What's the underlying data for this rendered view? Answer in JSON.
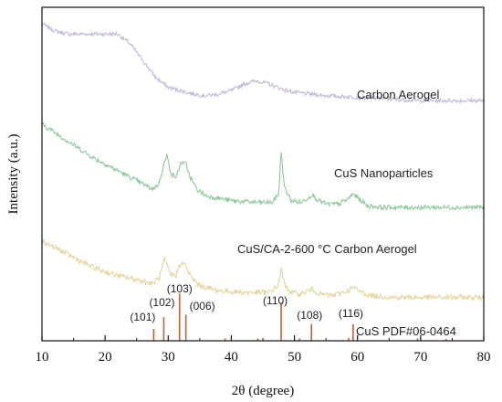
{
  "chart_data": {
    "type": "line",
    "xlabel": "2θ (degree)",
    "ylabel": "Intensity (a.u.)",
    "xlim": [
      10,
      80
    ],
    "x_ticks": [
      10,
      20,
      30,
      40,
      50,
      60,
      70,
      80
    ],
    "y_ticks_shown": false,
    "grid": false,
    "series": [
      {
        "name": "Carbon Aerogel",
        "color": "#c5b8db",
        "x": [
          10,
          12,
          14,
          16,
          18,
          20,
          22,
          24,
          26,
          28,
          30,
          32,
          34,
          36,
          38,
          40,
          42,
          44,
          46,
          48,
          50,
          55,
          60,
          65,
          70,
          75,
          80
        ],
        "y": [
          0.95,
          0.93,
          0.92,
          0.92,
          0.92,
          0.92,
          0.92,
          0.89,
          0.84,
          0.79,
          0.76,
          0.75,
          0.74,
          0.735,
          0.74,
          0.75,
          0.77,
          0.78,
          0.77,
          0.755,
          0.745,
          0.735,
          0.73,
          0.725,
          0.72,
          0.72,
          0.72
        ]
      },
      {
        "name": "CuS Nanoparticles",
        "color": "#8ec89a",
        "x": [
          10,
          14,
          18,
          22,
          26,
          27.5,
          28.5,
          29.3,
          29.8,
          30.5,
          31.3,
          32,
          32.8,
          33.5,
          34.5,
          36,
          40,
          44,
          46.5,
          47.5,
          47.9,
          48.4,
          49.5,
          51,
          52.3,
          52.8,
          53.5,
          55,
          57,
          58.5,
          59.3,
          60,
          61.5,
          64,
          70,
          80
        ],
        "y": [
          0.65,
          0.6,
          0.55,
          0.51,
          0.47,
          0.455,
          0.47,
          0.53,
          0.555,
          0.5,
          0.49,
          0.535,
          0.53,
          0.49,
          0.455,
          0.435,
          0.42,
          0.415,
          0.415,
          0.44,
          0.57,
          0.46,
          0.42,
          0.415,
          0.43,
          0.44,
          0.425,
          0.41,
          0.41,
          0.425,
          0.44,
          0.43,
          0.405,
          0.4,
          0.4,
          0.4
        ]
      },
      {
        "name": "CuS/CA-2-600 °C Carbon Aerogel",
        "color": "#e3d59b",
        "x": [
          10,
          14,
          18,
          22,
          26,
          27.5,
          28.6,
          29.4,
          30.3,
          31.2,
          32,
          32.8,
          33.6,
          35,
          38,
          42,
          46,
          47.4,
          47.9,
          48.5,
          49.5,
          51,
          52.8,
          54,
          56,
          58.5,
          59.3,
          60.2,
          62,
          66,
          72,
          80
        ],
        "y": [
          0.3,
          0.26,
          0.22,
          0.195,
          0.18,
          0.17,
          0.19,
          0.245,
          0.2,
          0.195,
          0.235,
          0.225,
          0.19,
          0.165,
          0.15,
          0.145,
          0.145,
          0.165,
          0.215,
          0.165,
          0.145,
          0.14,
          0.155,
          0.14,
          0.135,
          0.15,
          0.16,
          0.15,
          0.135,
          0.13,
          0.13,
          0.13
        ]
      }
    ],
    "reference": {
      "name": "CuS PDF#06-0464",
      "color": "#c0623a",
      "peaks": [
        {
          "x": 27.7,
          "h": 0.25,
          "label": "(101)"
        },
        {
          "x": 29.3,
          "h": 0.5,
          "label": "(102)"
        },
        {
          "x": 31.8,
          "h": 1.0,
          "label": "(103)"
        },
        {
          "x": 32.8,
          "h": 0.55,
          "label": "(006)"
        },
        {
          "x": 47.9,
          "h": 0.8,
          "label": "(110)"
        },
        {
          "x": 52.7,
          "h": 0.35,
          "label": "(108)"
        },
        {
          "x": 59.3,
          "h": 0.35,
          "label": "(116)"
        },
        {
          "x": 39.0,
          "h": 0.05,
          "label": ""
        },
        {
          "x": 44.2,
          "h": 0.05,
          "label": ""
        },
        {
          "x": 50.8,
          "h": 0.05,
          "label": ""
        },
        {
          "x": 58.6,
          "h": 0.06,
          "label": ""
        },
        {
          "x": 69.5,
          "h": 0.05,
          "label": ""
        },
        {
          "x": 74.0,
          "h": 0.04,
          "label": ""
        }
      ]
    }
  }
}
